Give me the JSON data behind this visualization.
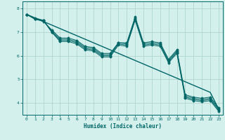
{
  "xlabel": "Humidex (Indice chaleur)",
  "bg_color": "#d4f0ec",
  "grid_color": "#aacfc9",
  "line_color": "#006666",
  "xlim": [
    -0.5,
    23.5
  ],
  "ylim": [
    3.5,
    8.3
  ],
  "yticks": [
    4,
    5,
    6,
    7,
    8
  ],
  "xticks": [
    0,
    1,
    2,
    3,
    4,
    5,
    6,
    7,
    8,
    9,
    10,
    11,
    12,
    13,
    14,
    15,
    16,
    17,
    18,
    19,
    20,
    21,
    22,
    23
  ],
  "series": [
    [
      7.75,
      7.55,
      7.5,
      7.0,
      6.65,
      6.65,
      6.55,
      6.3,
      6.25,
      6.0,
      6.0,
      6.5,
      6.45,
      7.55,
      6.45,
      6.5,
      6.45,
      5.75,
      6.15,
      4.25,
      4.15,
      4.1,
      4.15,
      3.7
    ],
    [
      7.75,
      7.55,
      7.5,
      7.05,
      6.7,
      6.7,
      6.6,
      6.35,
      6.3,
      6.05,
      6.05,
      6.55,
      6.5,
      7.6,
      6.5,
      6.55,
      6.5,
      5.8,
      6.2,
      4.3,
      4.2,
      4.15,
      4.2,
      3.75
    ],
    [
      7.75,
      7.6,
      7.5,
      7.0,
      6.6,
      6.6,
      6.5,
      6.25,
      6.2,
      5.95,
      5.95,
      6.45,
      6.4,
      7.5,
      6.4,
      6.45,
      6.4,
      5.7,
      6.1,
      4.2,
      4.1,
      4.05,
      4.1,
      3.65
    ],
    [
      7.75,
      7.55,
      7.45,
      7.1,
      6.75,
      6.75,
      6.65,
      6.4,
      6.35,
      6.1,
      6.1,
      6.55,
      6.55,
      7.65,
      6.55,
      6.6,
      6.55,
      5.85,
      6.25,
      4.35,
      4.25,
      4.2,
      4.25,
      3.8
    ]
  ],
  "straight_line": [
    7.75,
    7.6,
    7.45,
    7.3,
    7.15,
    7.0,
    6.85,
    6.7,
    6.55,
    6.4,
    6.25,
    6.1,
    5.95,
    5.8,
    5.65,
    5.5,
    5.35,
    5.2,
    5.05,
    4.9,
    4.75,
    4.6,
    4.45,
    3.75
  ]
}
